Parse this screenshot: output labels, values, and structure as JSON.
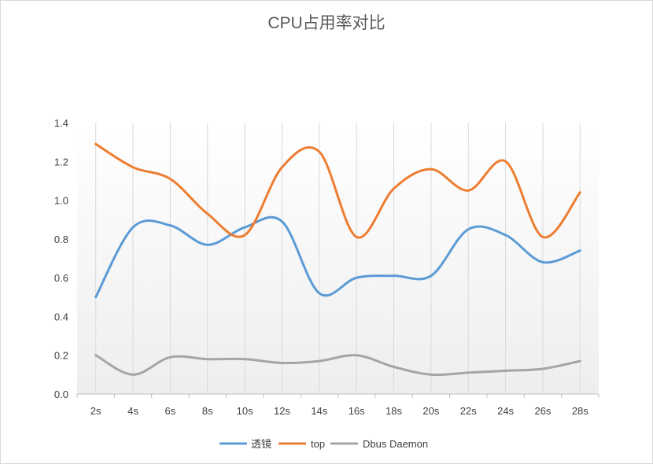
{
  "chart_data": {
    "type": "line",
    "title": "CPU占用率对比",
    "xlabel": "",
    "ylabel": "",
    "categories": [
      "2s",
      "4s",
      "6s",
      "8s",
      "10s",
      "12s",
      "14s",
      "16s",
      "18s",
      "20s",
      "22s",
      "24s",
      "26s",
      "28s"
    ],
    "ylim": [
      0,
      1.4
    ],
    "yticks": [
      "0.0",
      "0.2",
      "0.4",
      "0.6",
      "0.8",
      "1.0",
      "1.2",
      "1.4"
    ],
    "grid": "vertical",
    "legend": "bottom",
    "smooth": true,
    "series": [
      {
        "name": "透镜",
        "color": "#5b9bd5",
        "values": [
          0.5,
          0.86,
          0.87,
          0.77,
          0.86,
          0.89,
          0.52,
          0.6,
          0.61,
          0.61,
          0.85,
          0.82,
          0.68,
          0.74
        ]
      },
      {
        "name": "top",
        "color": "#ed7d31",
        "values": [
          1.29,
          1.17,
          1.11,
          0.93,
          0.82,
          1.17,
          1.25,
          0.81,
          1.06,
          1.16,
          1.05,
          1.2,
          0.81,
          1.04
        ]
      },
      {
        "name": "Dbus Daemon",
        "color": "#a5a5a5",
        "values": [
          0.2,
          0.1,
          0.19,
          0.18,
          0.18,
          0.16,
          0.17,
          0.2,
          0.14,
          0.1,
          0.11,
          0.12,
          0.13,
          0.17
        ]
      }
    ]
  }
}
